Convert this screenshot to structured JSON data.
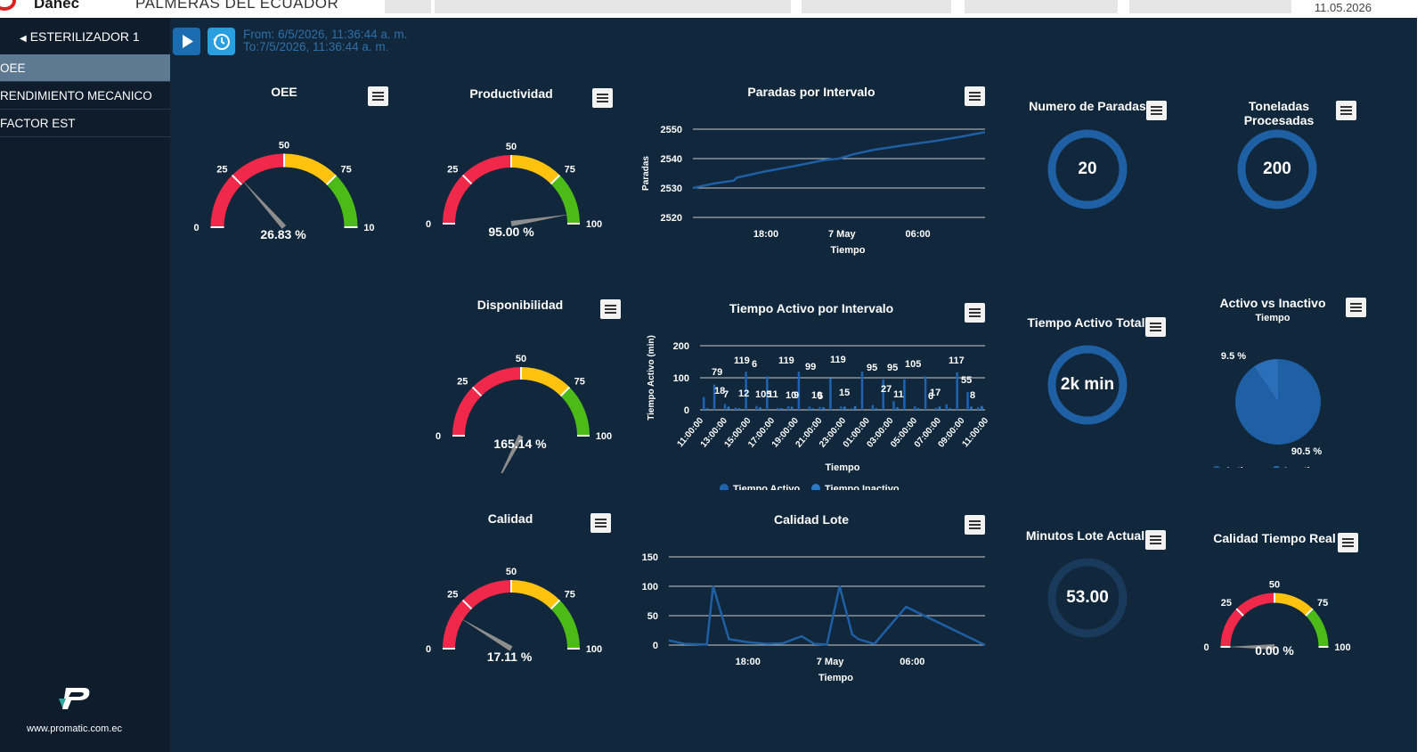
{
  "topbar": {
    "brand": "Danec",
    "company": "PALMERAS DEL ECUADOR",
    "date": "11.05.2026"
  },
  "sidebar": {
    "title": "ESTERILIZADOR 1",
    "items": [
      "OEE",
      "RENDIMIENTO MECANICO",
      "FACTOR EST"
    ],
    "website": "www.promatic.com.ec"
  },
  "header": {
    "from": "From: 6/5/2026, 11:36:44 a. m.",
    "to": "To:7/5/2026, 11:36:44 a. m."
  },
  "gauges": {
    "oee": {
      "title": "OEE",
      "value": 26.83,
      "label": "26.83 %"
    },
    "productividad": {
      "title": "Productividad",
      "value": 95.0,
      "label": "95.00 %"
    },
    "disponibilidad": {
      "title": "Disponibilidad",
      "value": 165.14,
      "label": "165.14 %"
    },
    "calidad": {
      "title": "Calidad",
      "value": 17.11,
      "label": "17.11 %"
    },
    "calidad_tiempo_real": {
      "title": "Calidad Tiempo Real",
      "value": 0,
      "label": "0.00 %"
    },
    "ticks": [
      "0",
      "25",
      "50",
      "75",
      "100"
    ]
  },
  "kpis": {
    "paradas": {
      "title": "Numero de Paradas",
      "value": "20"
    },
    "toneladas": {
      "title": "Toneladas Procesadas",
      "value": "200"
    },
    "tiempo_activo": {
      "title": "Tiempo Activo Total",
      "value": "2k min"
    },
    "minutos_lote": {
      "title": "Minutos Lote Actual",
      "value": "53.00"
    }
  },
  "colors": {
    "red": "#f0284a",
    "yellow": "#ffc20e",
    "green": "#4cbb17",
    "blue": "#1f5fa3",
    "bg": "#10273c",
    "sidebar": "#0e1c2c"
  },
  "chart_data": [
    {
      "type": "line",
      "title": "Paradas por Intervalo",
      "xlabel": "Tiempo",
      "ylabel": "Paradas",
      "x_ticks": [
        "18:00",
        "7 May",
        "06:00"
      ],
      "y_ticks": [
        2520,
        2530,
        2540,
        2550
      ],
      "ylim": [
        2520,
        2550
      ],
      "series": [
        {
          "name": "Paradas",
          "x": [
            0,
            0.07,
            0.14,
            0.15,
            0.24,
            0.35,
            0.45,
            0.5,
            0.55,
            0.62,
            0.72,
            0.83,
            0.92,
            1.0
          ],
          "values": [
            2530,
            2531.5,
            2532.5,
            2533.5,
            2535.5,
            2537.5,
            2539.5,
            2540,
            2541.5,
            2543,
            2544.5,
            2546,
            2547.5,
            2549
          ]
        }
      ]
    },
    {
      "type": "bar",
      "title": "Tiempo Activo por Intervalo",
      "xlabel": "Tiempo",
      "ylabel": "Tiempo Activo (min)",
      "ylim": [
        0,
        200
      ],
      "y_ticks": [
        0,
        100,
        200
      ],
      "x_ticks": [
        "11:00:00",
        "13:00:00",
        "15:00:00",
        "17:00:00",
        "19:00:00",
        "21:00:00",
        "23:00:00",
        "01:00:00",
        "03:00:00",
        "05:00:00",
        "07:00:00",
        "09:00:00",
        "11:00:00"
      ],
      "series": [
        {
          "name": "Tiempo Activo",
          "values": [
            40,
            79,
            18,
            7,
            119,
            12,
            105,
            6,
            11,
            119,
            10,
            9,
            99,
            10,
            5,
            119,
            15,
            95,
            27,
            95,
            11,
            105,
            6,
            17,
            117,
            55,
            8
          ]
        },
        {
          "name": "Tiempo Inactivo",
          "values": [
            5,
            0,
            10,
            5,
            0,
            8,
            0,
            5,
            10,
            0,
            5,
            8,
            0,
            10,
            12,
            0,
            5,
            0,
            8,
            0,
            5,
            0,
            10,
            5,
            0,
            10,
            12
          ]
        }
      ],
      "data_labels": [
        "79",
        "18",
        "7",
        "119",
        "12",
        "6",
        "105",
        "11",
        "119",
        "10",
        "9",
        "99",
        "10",
        "5",
        "119",
        "15",
        "95",
        "27",
        "95",
        "11",
        "105",
        "6",
        "17",
        "117",
        "55",
        "8"
      ]
    },
    {
      "type": "pie",
      "title": "Activo vs Inactivo",
      "subtitle": "Tiempo",
      "slices": [
        {
          "name": "Activo",
          "value": 90.5,
          "label": "90.5 %"
        },
        {
          "name": "Inactivo",
          "value": 9.5,
          "label": "9.5 %"
        }
      ]
    },
    {
      "type": "line",
      "title": "Calidad Lote",
      "xlabel": "Tiempo",
      "ylim": [
        0,
        150
      ],
      "y_ticks": [
        0,
        50,
        100,
        150
      ],
      "x_ticks": [
        "18:00",
        "7 May",
        "06:00"
      ],
      "series": [
        {
          "name": "Calidad Lote",
          "x": [
            0,
            0.05,
            0.12,
            0.14,
            0.19,
            0.25,
            0.31,
            0.36,
            0.42,
            0.46,
            0.5,
            0.54,
            0.58,
            0.6,
            0.65,
            0.75,
            1.0
          ],
          "values": [
            8,
            2,
            1,
            100,
            10,
            5,
            2,
            3,
            15,
            2,
            1,
            100,
            18,
            10,
            2,
            65,
            0
          ]
        }
      ]
    }
  ]
}
